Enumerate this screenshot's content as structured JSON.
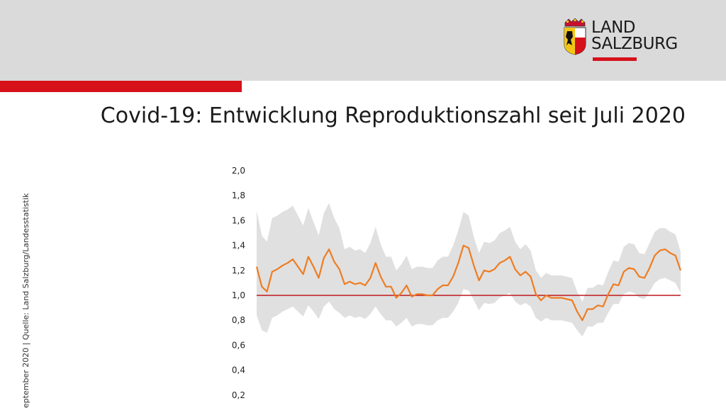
{
  "header": {
    "logo_line1": "LAND",
    "logo_line2": "SALZBURG",
    "title": "Covid-19: Entwicklung Reproduktionszahl seit Juli 2020"
  },
  "side_note": "eptember 2020 | Quelle: Land Salzburg/Landesstatistik",
  "colors": {
    "accent_red": "#d6111a",
    "line": "#ee7d22",
    "band": "#e0e0e0",
    "reference": "#c0161c"
  },
  "chart_data": {
    "type": "line",
    "title": "",
    "xlabel": "",
    "ylabel": "",
    "ylim": [
      0.2,
      2.0
    ],
    "yticks": [
      "2,0",
      "1,8",
      "1,6",
      "1,4",
      "1,2",
      "1,0",
      "0,8",
      "0,6",
      "0,4",
      "0,2"
    ],
    "ytick_values": [
      2.0,
      1.8,
      1.6,
      1.4,
      1.2,
      1.0,
      0.8,
      0.6,
      0.4,
      0.2
    ],
    "grid": false,
    "reference_line": 1.0,
    "series": [
      {
        "values": [
          1.23,
          1.07,
          1.03,
          1.19,
          1.21,
          1.24,
          1.26,
          1.29,
          1.23,
          1.17,
          1.31,
          1.23,
          1.14,
          1.3,
          1.37,
          1.27,
          1.21,
          1.09,
          1.11,
          1.09,
          1.1,
          1.08,
          1.14,
          1.26,
          1.15,
          1.07,
          1.07,
          0.98,
          1.02,
          1.08,
          0.99,
          1.01,
          1.01,
          1.0,
          1.0,
          1.05,
          1.08,
          1.08,
          1.15,
          1.26,
          1.4,
          1.38,
          1.24,
          1.12,
          1.2,
          1.19,
          1.21,
          1.26,
          1.28,
          1.31,
          1.21,
          1.16,
          1.19,
          1.15,
          1.01,
          0.96,
          1.0,
          0.98,
          0.98,
          0.98,
          0.97,
          0.96,
          0.87,
          0.8,
          0.89,
          0.89,
          0.92,
          0.91,
          1.01,
          1.09,
          1.08,
          1.19,
          1.22,
          1.21,
          1.15,
          1.14,
          1.22,
          1.32,
          1.36,
          1.37,
          1.34,
          1.32,
          1.2
        ],
        "lower": [
          0.84,
          0.72,
          0.7,
          0.82,
          0.84,
          0.87,
          0.89,
          0.91,
          0.87,
          0.83,
          0.92,
          0.87,
          0.81,
          0.91,
          0.95,
          0.89,
          0.86,
          0.82,
          0.84,
          0.82,
          0.83,
          0.81,
          0.85,
          0.91,
          0.85,
          0.8,
          0.8,
          0.75,
          0.78,
          0.82,
          0.75,
          0.77,
          0.77,
          0.76,
          0.76,
          0.8,
          0.82,
          0.82,
          0.87,
          0.94,
          1.05,
          1.04,
          0.96,
          0.88,
          0.94,
          0.93,
          0.94,
          0.98,
          1.0,
          1.02,
          0.95,
          0.92,
          0.94,
          0.91,
          0.82,
          0.79,
          0.82,
          0.8,
          0.8,
          0.8,
          0.79,
          0.78,
          0.72,
          0.67,
          0.75,
          0.75,
          0.78,
          0.78,
          0.86,
          0.93,
          0.93,
          1.01,
          1.03,
          1.02,
          0.98,
          0.97,
          1.03,
          1.1,
          1.13,
          1.14,
          1.12,
          1.1,
          1.02
        ],
        "upper": [
          1.68,
          1.48,
          1.43,
          1.62,
          1.64,
          1.67,
          1.69,
          1.72,
          1.64,
          1.56,
          1.7,
          1.59,
          1.48,
          1.66,
          1.74,
          1.62,
          1.54,
          1.37,
          1.39,
          1.36,
          1.37,
          1.34,
          1.42,
          1.55,
          1.41,
          1.31,
          1.31,
          1.2,
          1.25,
          1.32,
          1.21,
          1.23,
          1.23,
          1.22,
          1.22,
          1.28,
          1.31,
          1.31,
          1.4,
          1.52,
          1.67,
          1.64,
          1.47,
          1.34,
          1.43,
          1.42,
          1.44,
          1.5,
          1.52,
          1.55,
          1.43,
          1.37,
          1.41,
          1.36,
          1.2,
          1.14,
          1.18,
          1.16,
          1.16,
          1.16,
          1.15,
          1.14,
          1.03,
          0.95,
          1.06,
          1.06,
          1.09,
          1.08,
          1.19,
          1.28,
          1.27,
          1.39,
          1.42,
          1.41,
          1.34,
          1.33,
          1.42,
          1.51,
          1.54,
          1.54,
          1.51,
          1.49,
          1.35
        ]
      }
    ]
  }
}
